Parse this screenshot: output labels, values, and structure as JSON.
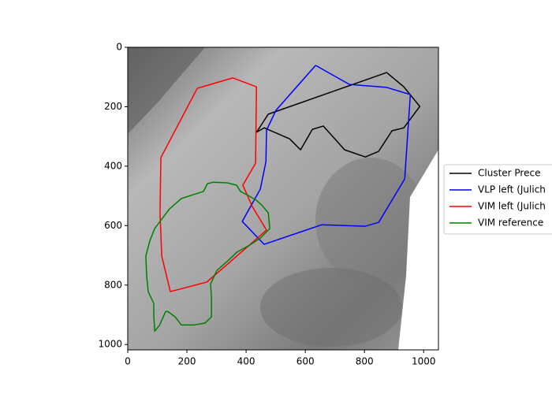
{
  "chart_data": {
    "type": "line",
    "xlim": [
      0,
      1050
    ],
    "ylim": [
      1018,
      0
    ],
    "xticks": [
      0,
      200,
      400,
      600,
      800,
      1000
    ],
    "yticks": [
      0,
      200,
      400,
      600,
      800,
      1000
    ],
    "closed": true,
    "series": [
      {
        "name": "Cluster Prece",
        "color": "#000000",
        "x": [
          435,
          475,
          875,
          933,
          987,
          933,
          893,
          848,
          803,
          733,
          661,
          624,
          584,
          547,
          461,
          435
        ],
        "y": [
          286,
          225,
          85,
          133,
          199,
          271,
          281,
          350,
          369,
          345,
          265,
          276,
          345,
          308,
          271,
          286
        ]
      },
      {
        "name": "VLP left (Julich",
        "color": "#0000ff",
        "x": [
          635,
          749,
          875,
          955,
          936,
          848,
          803,
          656,
          461,
          387,
          448,
          467,
          469,
          501,
          595,
          635
        ],
        "y": [
          61,
          125,
          135,
          159,
          443,
          589,
          602,
          597,
          663,
          586,
          477,
          385,
          279,
          212,
          106,
          61
        ]
      },
      {
        "name": "VIM left (Julich",
        "color": "#ff0000",
        "x": [
          112,
          235,
          355,
          435,
          432,
          389,
          421,
          469,
          368,
          267,
          144,
          115,
          109,
          112
        ],
        "y": [
          371,
          138,
          103,
          133,
          390,
          464,
          536,
          615,
          703,
          790,
          822,
          703,
          557,
          371
        ]
      },
      {
        "name": "VIM reference",
        "color": "#008000",
        "x": [
          269,
          288,
          336,
          368,
          381,
          408,
          435,
          453,
          475,
          480,
          448,
          416,
          368,
          341,
          301,
          280,
          283,
          283,
          261,
          224,
          181,
          160,
          136,
          128,
          107,
          91,
          88,
          88,
          69,
          64,
          61,
          75,
          91,
          115,
          141,
          181,
          221,
          256,
          269
        ],
        "y": [
          459,
          454,
          456,
          464,
          485,
          499,
          515,
          531,
          557,
          610,
          642,
          663,
          690,
          716,
          751,
          796,
          844,
          907,
          928,
          934,
          934,
          907,
          889,
          889,
          936,
          955,
          902,
          862,
          822,
          769,
          703,
          650,
          610,
          578,
          544,
          509,
          496,
          485,
          459
        ]
      }
    ]
  }
}
